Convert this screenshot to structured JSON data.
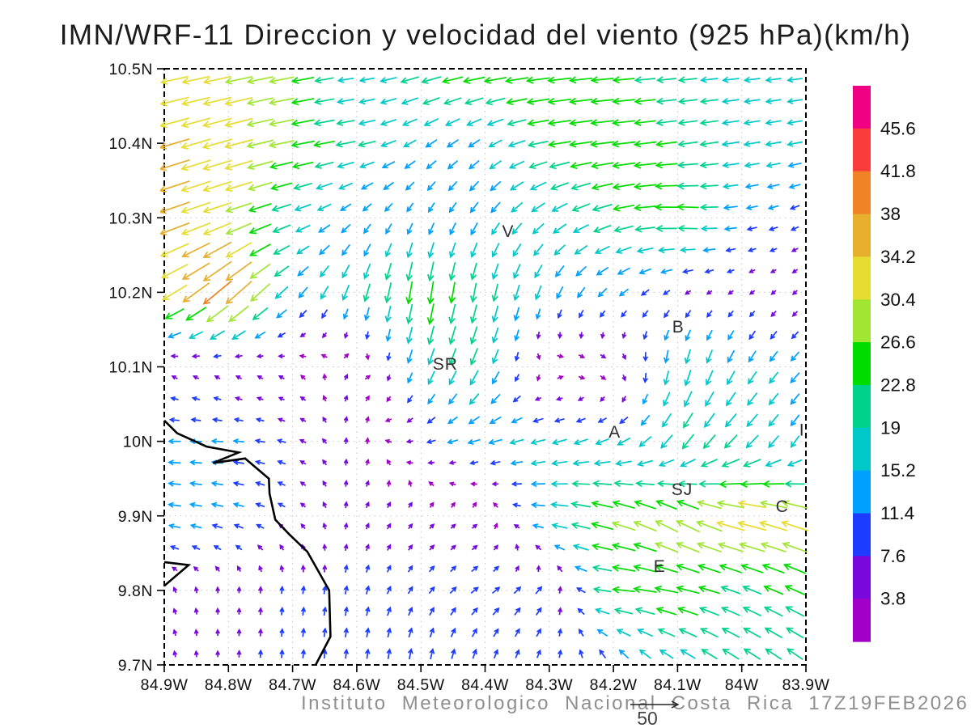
{
  "title": "IMN/WRF-11 Direccion y velocidad del viento (925 hPa)(km/h)",
  "footer": {
    "credit": "Instituto Meteorologico Nacional Costa Rica 17Z19FEB2026",
    "reference_vector_label": "50"
  },
  "chart_data": {
    "type": "quiver",
    "title": "IMN/WRF-11 Direccion y velocidad del viento (925 hPa)(km/h)",
    "units": "km/h",
    "pressure_level": "925 hPa",
    "lon_range": [
      -84.9,
      -83.9
    ],
    "lat_range": [
      9.7,
      10.5
    ],
    "grid_on": true,
    "x_ticks": [
      {
        "label": "84.9W",
        "lon": -84.9
      },
      {
        "label": "84.8W",
        "lon": -84.8
      },
      {
        "label": "84.7W",
        "lon": -84.7
      },
      {
        "label": "84.6W",
        "lon": -84.6
      },
      {
        "label": "84.5W",
        "lon": -84.5
      },
      {
        "label": "84.4W",
        "lon": -84.4
      },
      {
        "label": "84.3W",
        "lon": -84.3
      },
      {
        "label": "84.2W",
        "lon": -84.2
      },
      {
        "label": "84.1W",
        "lon": -84.1
      },
      {
        "label": "84W",
        "lon": -84.0
      },
      {
        "label": "83.9W",
        "lon": -83.9
      }
    ],
    "y_ticks": [
      {
        "label": "10.5N",
        "lat": 10.5
      },
      {
        "label": "10.4N",
        "lat": 10.4
      },
      {
        "label": "10.3N",
        "lat": 10.3
      },
      {
        "label": "10.2N",
        "lat": 10.2
      },
      {
        "label": "10.1N",
        "lat": 10.1
      },
      {
        "label": "10N",
        "lat": 10.0
      },
      {
        "label": "9.9N",
        "lat": 9.9
      },
      {
        "label": "9.8N",
        "lat": 9.8
      },
      {
        "label": "9.7N",
        "lat": 9.7
      }
    ],
    "colorbar": {
      "position": "right",
      "levels": [
        3.8,
        7.6,
        11.4,
        15.2,
        19,
        22.8,
        26.6,
        30.4,
        34.2,
        38,
        41.8,
        45.6
      ],
      "label_values": [
        "45.6",
        "41.8",
        "38",
        "34.2",
        "30.4",
        "26.6",
        "22.8",
        "19",
        "15.2",
        "11.4",
        "7.6",
        "3.8"
      ],
      "colors_low_to_high": [
        "#A000C8",
        "#7808DC",
        "#1E3CFF",
        "#00A0FF",
        "#00C8C8",
        "#00D28C",
        "#00DC00",
        "#A0E632",
        "#E6DC32",
        "#E6AF2D",
        "#F08228",
        "#FA3C3C",
        "#F00082"
      ]
    },
    "reference_vector": {
      "speed": 50,
      "label": "50"
    },
    "city_markers": [
      {
        "label": "V",
        "lon": -84.364,
        "lat": 10.274
      },
      {
        "label": "B",
        "lon": -84.099,
        "lat": 10.146
      },
      {
        "label": "SR",
        "lon": -84.462,
        "lat": 10.096
      },
      {
        "label": "A",
        "lon": -84.198,
        "lat": 10.005
      },
      {
        "label": "I",
        "lon": -83.906,
        "lat": 10.008
      },
      {
        "label": "SJ",
        "lon": -84.093,
        "lat": 9.928
      },
      {
        "label": "C",
        "lon": -83.937,
        "lat": 9.905
      },
      {
        "label": "E",
        "lon": -84.128,
        "lat": 9.825
      }
    ],
    "coastlines": [
      [
        [
          -84.9,
          10.028
        ],
        [
          -84.88,
          10.011
        ],
        [
          -84.834,
          9.993
        ],
        [
          -84.784,
          9.985
        ],
        [
          -84.824,
          9.971
        ],
        [
          -84.774,
          9.977
        ],
        [
          -84.737,
          9.95
        ],
        [
          -84.736,
          9.93
        ],
        [
          -84.727,
          9.895
        ],
        [
          -84.706,
          9.876
        ],
        [
          -84.677,
          9.852
        ],
        [
          -84.643,
          9.8
        ],
        [
          -84.641,
          9.738
        ],
        [
          -84.664,
          9.7
        ]
      ],
      [
        [
          -84.9,
          9.838
        ],
        [
          -84.862,
          9.834
        ],
        [
          -84.9,
          9.806
        ]
      ]
    ],
    "wind_grid": {
      "comment": "u=eastward, v=northward wind components in km/h on a 0.1 deg grid; lats descending",
      "lons": [
        -84.9,
        -84.8,
        -84.7,
        -84.6,
        -84.5,
        -84.4,
        -84.3,
        -84.2,
        -84.1,
        -84.0,
        -83.9
      ],
      "lats": [
        10.5,
        10.4,
        10.3,
        10.2,
        10.1,
        10.0,
        9.9,
        9.8,
        9.7
      ],
      "u": [
        [
          -30,
          -30,
          -26,
          -14,
          -22,
          -26,
          -26,
          -24,
          -20,
          -17,
          -16
        ],
        [
          -33,
          -32,
          -26,
          -20,
          -12,
          -12,
          -24,
          -26,
          -22,
          -18,
          -16
        ],
        [
          -34,
          -30,
          -18,
          -8,
          -5,
          -8,
          -14,
          -22,
          -26,
          -12,
          -8
        ],
        [
          -26,
          -32,
          -10,
          -6,
          -4,
          -4,
          -6,
          -10,
          -6,
          -4,
          -3
        ],
        [
          -4,
          -4,
          -3,
          3,
          -6,
          -8,
          4,
          6,
          -4,
          -8,
          -10
        ],
        [
          -13,
          -12,
          -8,
          2,
          -8,
          -14,
          -16,
          -14,
          -12,
          -14,
          -8
        ],
        [
          -14,
          -12,
          -6,
          2,
          4,
          4,
          -18,
          -26,
          -24,
          -34,
          -30
        ],
        [
          -2,
          0,
          1,
          2,
          5,
          8,
          6,
          -24,
          -26,
          -20,
          -22
        ],
        [
          -1,
          0,
          1,
          1,
          2,
          3,
          3,
          -6,
          -14,
          -18,
          -16
        ]
      ],
      "v": [
        [
          -6,
          -6,
          -5,
          -2,
          -6,
          -4,
          -3,
          -2,
          -2,
          -2,
          -2
        ],
        [
          -10,
          -9,
          -5,
          -4,
          -8,
          -8,
          -4,
          -3,
          -3,
          -3,
          -3
        ],
        [
          -12,
          -10,
          -6,
          -8,
          -10,
          -12,
          -10,
          -6,
          2,
          -2,
          -4
        ],
        [
          -14,
          -28,
          -10,
          -18,
          -26,
          -20,
          -14,
          -8,
          -4,
          -3,
          -3
        ],
        [
          3,
          3,
          2,
          4,
          -16,
          -18,
          2,
          -2,
          -18,
          -14,
          -10
        ],
        [
          0,
          1,
          3,
          4,
          -2,
          -4,
          -4,
          -6,
          -16,
          -14,
          -12
        ],
        [
          2,
          3,
          4,
          5,
          4,
          3,
          2,
          8,
          14,
          8,
          10
        ],
        [
          4,
          6,
          8,
          9,
          7,
          6,
          8,
          2,
          6,
          8,
          10
        ],
        [
          4,
          7,
          9,
          10,
          12,
          10,
          8,
          10,
          10,
          12,
          12
        ]
      ]
    }
  }
}
